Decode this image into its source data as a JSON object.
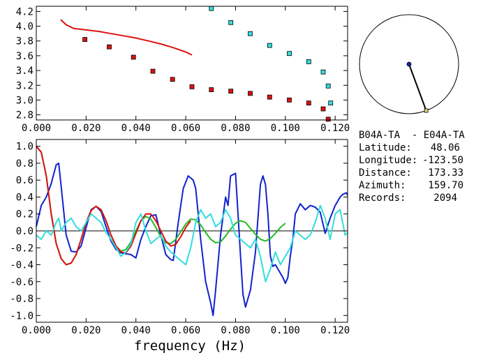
{
  "colors": {
    "red": "#dd1111",
    "blue": "#1122cc",
    "green": "#22bb22",
    "cyan": "#33dddd",
    "marker_edge": "#000000",
    "arrow_tip": "#e8d870",
    "center_dot": "#1122aa"
  },
  "chart_data": [
    {
      "type": "scatter",
      "xlabel": "",
      "ylabel": "",
      "xlim": [
        0.0,
        0.125
      ],
      "ylim": [
        2.73,
        4.27
      ],
      "x_ticks": [
        "0.000",
        "0.020",
        "0.040",
        "0.060",
        "0.080",
        "0.100",
        "0.120"
      ],
      "y_ticks": [
        "2.8",
        "3.0",
        "3.2",
        "3.4",
        "3.6",
        "3.8",
        "4.0",
        "4.2"
      ],
      "series": [
        {
          "kind": "line",
          "color": "red",
          "x": [
            0.0098,
            0.012,
            0.015,
            0.02,
            0.025,
            0.03,
            0.035,
            0.04,
            0.045,
            0.05,
            0.055,
            0.06,
            0.0625
          ],
          "y": [
            4.09,
            4.02,
            3.97,
            3.95,
            3.93,
            3.9,
            3.87,
            3.84,
            3.8,
            3.76,
            3.71,
            3.65,
            3.61
          ]
        },
        {
          "kind": "markers",
          "color": "red",
          "x": [
            0.0195,
            0.0293,
            0.039,
            0.0468,
            0.0547,
            0.0625,
            0.0703,
            0.0781,
            0.0859,
            0.0937,
            0.1016,
            0.1094,
            0.1152,
            0.1172
          ],
          "y": [
            3.82,
            3.72,
            3.58,
            3.39,
            3.28,
            3.18,
            3.14,
            3.12,
            3.09,
            3.04,
            3.0,
            2.96,
            2.88,
            2.74
          ]
        },
        {
          "kind": "markers",
          "color": "cyan",
          "x": [
            0.0703,
            0.0781,
            0.0859,
            0.0937,
            0.1016,
            0.1094,
            0.1152,
            0.1172,
            0.1182
          ],
          "y": [
            4.24,
            4.05,
            3.9,
            3.74,
            3.63,
            3.52,
            3.38,
            3.19,
            2.96
          ]
        }
      ]
    },
    {
      "type": "line",
      "xlabel": "frequency (Hz)",
      "ylabel": "",
      "xlim": [
        0.0,
        0.125
      ],
      "ylim": [
        -1.08,
        1.08
      ],
      "x_ticks": [
        "0.000",
        "0.020",
        "0.040",
        "0.060",
        "0.080",
        "0.100",
        "0.120"
      ],
      "y_ticks": [
        "1.0",
        "0.8",
        "0.6",
        "0.4",
        "0.2",
        "0.0",
        "-0.2",
        "-0.4",
        "-0.6",
        "-0.8",
        "-1.0"
      ],
      "zero_line": true,
      "series": [
        {
          "color": "blue",
          "x": [
            0.0,
            0.002,
            0.004,
            0.006,
            0.008,
            0.009,
            0.01,
            0.012,
            0.014,
            0.016,
            0.018,
            0.02,
            0.022,
            0.024,
            0.026,
            0.028,
            0.03,
            0.032,
            0.034,
            0.036,
            0.038,
            0.04,
            0.042,
            0.044,
            0.046,
            0.048,
            0.05,
            0.052,
            0.054,
            0.055,
            0.057,
            0.059,
            0.061,
            0.063,
            0.064,
            0.066,
            0.068,
            0.07,
            0.071,
            0.072,
            0.074,
            0.076,
            0.077,
            0.078,
            0.08,
            0.081,
            0.082,
            0.083,
            0.084,
            0.086,
            0.088,
            0.09,
            0.091,
            0.092,
            0.093,
            0.094,
            0.095,
            0.096,
            0.097,
            0.099,
            0.1,
            0.101,
            0.102,
            0.103,
            0.104,
            0.106,
            0.108,
            0.11,
            0.112,
            0.114,
            0.116,
            0.118,
            0.12,
            0.122,
            0.123,
            0.1245,
            0.125
          ],
          "y": [
            0.05,
            0.3,
            0.4,
            0.56,
            0.78,
            0.8,
            0.52,
            -0.05,
            -0.24,
            -0.25,
            -0.18,
            0.04,
            0.25,
            0.29,
            0.23,
            0.05,
            -0.12,
            -0.22,
            -0.26,
            -0.27,
            -0.28,
            -0.32,
            -0.1,
            0.05,
            0.18,
            0.19,
            -0.05,
            -0.28,
            -0.34,
            -0.35,
            0.1,
            0.5,
            0.65,
            0.6,
            0.5,
            -0.1,
            -0.6,
            -0.85,
            -1.0,
            -0.7,
            -0.05,
            0.4,
            0.3,
            0.65,
            0.68,
            0.2,
            -0.3,
            -0.75,
            -0.9,
            -0.7,
            -0.25,
            0.55,
            0.65,
            0.55,
            0.2,
            -0.3,
            -0.42,
            -0.4,
            -0.45,
            -0.55,
            -0.62,
            -0.55,
            -0.3,
            -0.1,
            0.2,
            0.32,
            0.25,
            0.3,
            0.28,
            0.22,
            -0.03,
            0.15,
            0.3,
            0.4,
            0.43,
            0.45,
            0.42
          ]
        },
        {
          "color": "green",
          "x": [
            0.0,
            0.002,
            0.004,
            0.006,
            0.008,
            0.01,
            0.012,
            0.014,
            0.016,
            0.018,
            0.02,
            0.022,
            0.024,
            0.026,
            0.028,
            0.03,
            0.032,
            0.034,
            0.036,
            0.038,
            0.04,
            0.042,
            0.044,
            0.046,
            0.048,
            0.05,
            0.052,
            0.054,
            0.056,
            0.058,
            0.06,
            0.062,
            0.064,
            0.066,
            0.068,
            0.07,
            0.072,
            0.074,
            0.076,
            0.078,
            0.08,
            0.082,
            0.084,
            0.086,
            0.088,
            0.09,
            0.092,
            0.094,
            0.096,
            0.098,
            0.1
          ],
          "y": [
            1.0,
            0.93,
            0.65,
            0.2,
            -0.15,
            -0.33,
            -0.4,
            -0.38,
            -0.28,
            -0.1,
            0.1,
            0.24,
            0.29,
            0.25,
            0.12,
            -0.05,
            -0.18,
            -0.24,
            -0.22,
            -0.13,
            0.0,
            0.12,
            0.17,
            0.14,
            0.04,
            -0.07,
            -0.14,
            -0.15,
            -0.1,
            -0.01,
            0.08,
            0.14,
            0.13,
            0.07,
            -0.02,
            -0.1,
            -0.14,
            -0.13,
            -0.06,
            0.02,
            0.09,
            0.12,
            0.1,
            0.03,
            -0.04,
            -0.1,
            -0.12,
            -0.09,
            -0.03,
            0.04,
            0.09
          ]
        },
        {
          "color": "red",
          "x": [
            0.0,
            0.002,
            0.004,
            0.006,
            0.008,
            0.01,
            0.012,
            0.014,
            0.016,
            0.018,
            0.02,
            0.022,
            0.024,
            0.026,
            0.028,
            0.03,
            0.032,
            0.034,
            0.036,
            0.038,
            0.04,
            0.042,
            0.044,
            0.046,
            0.048,
            0.05,
            0.052,
            0.054,
            0.056,
            0.058,
            0.06,
            0.062
          ],
          "y": [
            1.0,
            0.93,
            0.65,
            0.2,
            -0.15,
            -0.33,
            -0.4,
            -0.38,
            -0.28,
            -0.1,
            0.1,
            0.24,
            0.29,
            0.25,
            0.12,
            -0.05,
            -0.18,
            -0.25,
            -0.26,
            -0.18,
            -0.03,
            0.12,
            0.2,
            0.2,
            0.12,
            0.0,
            -0.12,
            -0.18,
            -0.16,
            -0.07,
            0.04,
            0.12
          ]
        },
        {
          "color": "cyan",
          "x": [
            0.0,
            0.002,
            0.004,
            0.006,
            0.008,
            0.009,
            0.01,
            0.012,
            0.014,
            0.016,
            0.018,
            0.02,
            0.022,
            0.024,
            0.026,
            0.028,
            0.03,
            0.032,
            0.034,
            0.036,
            0.038,
            0.04,
            0.042,
            0.044,
            0.046,
            0.048,
            0.05,
            0.052,
            0.054,
            0.056,
            0.058,
            0.06,
            0.062,
            0.064,
            0.066,
            0.068,
            0.07,
            0.072,
            0.074,
            0.076,
            0.078,
            0.08,
            0.082,
            0.084,
            0.086,
            0.088,
            0.09,
            0.092,
            0.094,
            0.096,
            0.098,
            0.1,
            0.102,
            0.104,
            0.106,
            0.108,
            0.11,
            0.112,
            0.114,
            0.116,
            0.118,
            0.12,
            0.122,
            0.124,
            0.125
          ],
          "y": [
            -0.05,
            -0.1,
            0.0,
            -0.05,
            0.1,
            0.15,
            0.0,
            0.1,
            0.15,
            0.05,
            0.0,
            0.1,
            0.2,
            0.15,
            0.1,
            -0.02,
            -0.1,
            -0.2,
            -0.3,
            -0.25,
            -0.15,
            0.1,
            0.2,
            0.0,
            -0.15,
            -0.1,
            -0.05,
            -0.18,
            -0.25,
            -0.3,
            -0.35,
            -0.4,
            -0.2,
            0.1,
            0.25,
            0.15,
            0.2,
            0.05,
            0.1,
            0.25,
            0.15,
            -0.05,
            -0.1,
            -0.15,
            -0.2,
            -0.1,
            -0.3,
            -0.6,
            -0.45,
            -0.25,
            -0.4,
            -0.3,
            -0.2,
            0.0,
            -0.05,
            -0.1,
            -0.05,
            0.1,
            0.3,
            0.15,
            -0.1,
            0.2,
            0.25,
            -0.05,
            -0.02
          ]
        }
      ]
    }
  ],
  "polar": {
    "azimuth_deg": 159.7
  },
  "info": {
    "title": "B04A-TA  - E04A-TA",
    "rows": [
      {
        "label": "Latitude:",
        "value": "48.06"
      },
      {
        "label": "Longitude:",
        "value": "-123.50"
      },
      {
        "label": "Distance:",
        "value": "173.33"
      },
      {
        "label": "Azimuth:",
        "value": "159.70"
      },
      {
        "label": "Records:",
        "value": "2094"
      }
    ]
  }
}
